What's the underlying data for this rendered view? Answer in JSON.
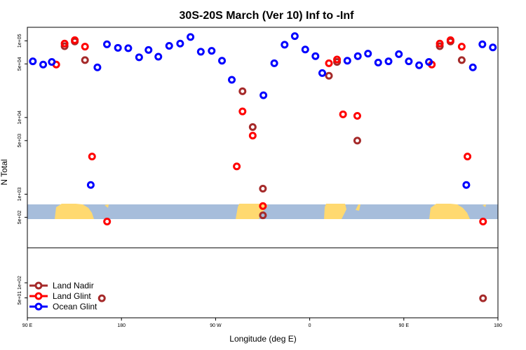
{
  "chart_data": {
    "type": "scatter",
    "title": "30S-20S March (Ver 10)   Inf to -Inf",
    "xlabel": "Longitude (deg E)",
    "ylabel": "N Total",
    "x_axis_range": [
      0,
      360
    ],
    "x_ticks": [
      {
        "pos": 0,
        "label": "90 E"
      },
      {
        "pos": 72,
        "label": "180"
      },
      {
        "pos": 144,
        "label": "90 W"
      },
      {
        "pos": 216,
        "label": "0"
      },
      {
        "pos": 288,
        "label": "90 E"
      },
      {
        "pos": 360,
        "label": "180"
      }
    ],
    "y_scale": "log",
    "upper_panel_ylim": [
      200,
      150000
    ],
    "lower_panel_ylim": [
      20,
      500
    ],
    "upper_y_ticks": [
      {
        "value": 500,
        "label": "5e+02"
      },
      {
        "value": 1000,
        "label": "1e+03"
      },
      {
        "value": 5000,
        "label": "5e+03"
      },
      {
        "value": 10000,
        "label": "1e+04"
      },
      {
        "value": 50000,
        "label": "5e+04"
      },
      {
        "value": 100000,
        "label": "1e+05"
      }
    ],
    "lower_y_ticks": [
      {
        "value": 50,
        "label": "5e+01"
      },
      {
        "value": 100,
        "label": "1e+02"
      }
    ],
    "legend_position": "bottom-left",
    "colors": {
      "land_nadir": "#a52a2a",
      "land_glint": "#ff0000",
      "ocean_glint": "#0000ff",
      "ocean_map": "#a6bddb",
      "land_map": "#ffd970"
    },
    "series": [
      {
        "name": "Land Nadir",
        "color": "#a52a2a",
        "points": [
          {
            "x": 28.5,
            "y": 85000
          },
          {
            "x": 36.3,
            "y": 98000
          },
          {
            "x": 44.1,
            "y": 56000
          },
          {
            "x": 57,
            "y": 49,
            "panel": "lower"
          },
          {
            "x": 164.6,
            "y": 22000
          },
          {
            "x": 172.4,
            "y": 7500
          },
          {
            "x": 180.2,
            "y": 1180,
            "panel": "upper"
          },
          {
            "x": 180.2,
            "y": 530,
            "panel": "upper_map"
          },
          {
            "x": 230.7,
            "y": 35000
          },
          {
            "x": 236.9,
            "y": 53000
          },
          {
            "x": 252.4,
            "y": 5000
          },
          {
            "x": 315.5,
            "y": 85000
          },
          {
            "x": 323.7,
            "y": 98000
          },
          {
            "x": 332.3,
            "y": 56000
          },
          {
            "x": 348.6,
            "y": 49,
            "panel": "lower"
          }
        ]
      },
      {
        "name": "Land Glint",
        "color": "#ff0000",
        "points": [
          {
            "x": 22.1,
            "y": 49000
          },
          {
            "x": 28.5,
            "y": 92000
          },
          {
            "x": 36.3,
            "y": 102000
          },
          {
            "x": 44.1,
            "y": 84000
          },
          {
            "x": 49.5,
            "y": 3100
          },
          {
            "x": 61,
            "y": 440
          },
          {
            "x": 160.2,
            "y": 2300
          },
          {
            "x": 164.6,
            "y": 12000
          },
          {
            "x": 172.4,
            "y": 5800
          },
          {
            "x": 180.2,
            "y": 700
          },
          {
            "x": 230.7,
            "y": 51000
          },
          {
            "x": 236.9,
            "y": 57000
          },
          {
            "x": 241.5,
            "y": 11000
          },
          {
            "x": 252.4,
            "y": 10500
          },
          {
            "x": 309.4,
            "y": 49000
          },
          {
            "x": 315.5,
            "y": 92000
          },
          {
            "x": 323.7,
            "y": 102000
          },
          {
            "x": 332.3,
            "y": 84000
          },
          {
            "x": 336.7,
            "y": 3100
          },
          {
            "x": 348.6,
            "y": 440
          }
        ]
      },
      {
        "name": "Ocean Glint",
        "color": "#0000ff",
        "points": [
          {
            "x": 4.2,
            "y": 54000
          },
          {
            "x": 12.1,
            "y": 49000
          },
          {
            "x": 18.7,
            "y": 53000
          },
          {
            "x": 48.5,
            "y": 1320
          },
          {
            "x": 53.6,
            "y": 45000
          },
          {
            "x": 60.9,
            "y": 90000
          },
          {
            "x": 69.3,
            "y": 81000
          },
          {
            "x": 77.2,
            "y": 80000
          },
          {
            "x": 85.5,
            "y": 61000
          },
          {
            "x": 92.7,
            "y": 76000
          },
          {
            "x": 100.2,
            "y": 62000
          },
          {
            "x": 108.5,
            "y": 86000
          },
          {
            "x": 116.9,
            "y": 92000
          },
          {
            "x": 124.8,
            "y": 112000
          },
          {
            "x": 132.7,
            "y": 72000
          },
          {
            "x": 141,
            "y": 74000
          },
          {
            "x": 148.9,
            "y": 55000
          },
          {
            "x": 156.4,
            "y": 31000
          },
          {
            "x": 180.6,
            "y": 19500
          },
          {
            "x": 188.9,
            "y": 51000
          },
          {
            "x": 196.8,
            "y": 89000
          },
          {
            "x": 204.6,
            "y": 115000
          },
          {
            "x": 212.6,
            "y": 77000
          },
          {
            "x": 220.4,
            "y": 63000
          },
          {
            "x": 225.6,
            "y": 38000
          },
          {
            "x": 244.8,
            "y": 55000
          },
          {
            "x": 252.8,
            "y": 63000
          },
          {
            "x": 260.6,
            "y": 68000
          },
          {
            "x": 268.4,
            "y": 52000
          },
          {
            "x": 276.3,
            "y": 54000
          },
          {
            "x": 284.2,
            "y": 67000
          },
          {
            "x": 291.8,
            "y": 54000
          },
          {
            "x": 299.7,
            "y": 48000
          },
          {
            "x": 307.2,
            "y": 53000
          },
          {
            "x": 335.8,
            "y": 1320
          },
          {
            "x": 340.8,
            "y": 45000
          },
          {
            "x": 348.1,
            "y": 90000
          },
          {
            "x": 356.1,
            "y": 82000
          }
        ]
      }
    ]
  }
}
